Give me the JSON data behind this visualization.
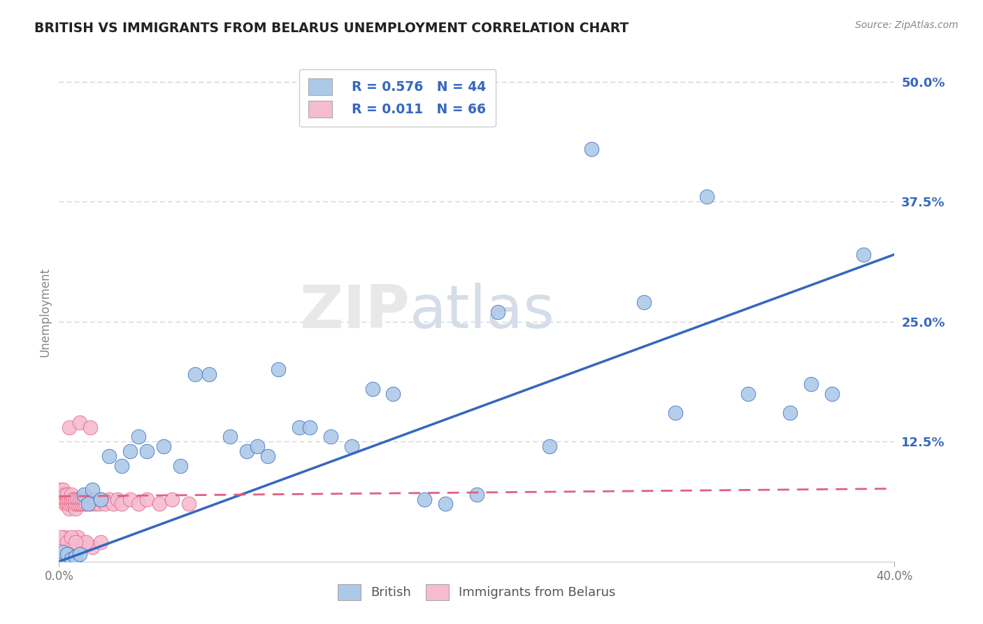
{
  "title": "BRITISH VS IMMIGRANTS FROM BELARUS UNEMPLOYMENT CORRELATION CHART",
  "source": "Source: ZipAtlas.com",
  "ylabel": "Unemployment",
  "legend_british_R": "R = 0.576",
  "legend_british_N": "N = 44",
  "legend_belarus_R": "R = 0.011",
  "legend_belarus_N": "N = 66",
  "ytick_values": [
    0.0,
    0.125,
    0.25,
    0.375,
    0.5
  ],
  "xlim": [
    0.0,
    0.4
  ],
  "ylim": [
    0.0,
    0.52
  ],
  "british_color": "#adc9e8",
  "belarus_color": "#f5bcd0",
  "british_line_color": "#3567c0",
  "belarus_line_color": "#e06080",
  "background_color": "#ffffff",
  "watermark_zip": "ZIP",
  "watermark_atlas": "atlas",
  "brit_x": [
    0.001,
    0.002,
    0.004,
    0.006,
    0.008,
    0.01,
    0.012,
    0.014,
    0.016,
    0.02,
    0.024,
    0.03,
    0.034,
    0.038,
    0.042,
    0.05,
    0.058,
    0.065,
    0.072,
    0.082,
    0.09,
    0.095,
    0.1,
    0.105,
    0.115,
    0.12,
    0.13,
    0.14,
    0.15,
    0.16,
    0.175,
    0.185,
    0.2,
    0.21,
    0.235,
    0.255,
    0.28,
    0.295,
    0.31,
    0.33,
    0.35,
    0.36,
    0.37,
    0.385
  ],
  "brit_y": [
    0.005,
    0.01,
    0.008,
    0.003,
    0.005,
    0.008,
    0.07,
    0.06,
    0.075,
    0.065,
    0.11,
    0.1,
    0.115,
    0.13,
    0.115,
    0.12,
    0.1,
    0.195,
    0.195,
    0.13,
    0.115,
    0.12,
    0.11,
    0.2,
    0.14,
    0.14,
    0.13,
    0.12,
    0.18,
    0.175,
    0.065,
    0.06,
    0.07,
    0.26,
    0.12,
    0.43,
    0.27,
    0.155,
    0.38,
    0.175,
    0.155,
    0.185,
    0.175,
    0.32
  ],
  "bel_x": [
    0.001,
    0.001,
    0.001,
    0.002,
    0.002,
    0.002,
    0.003,
    0.003,
    0.003,
    0.004,
    0.004,
    0.004,
    0.005,
    0.005,
    0.005,
    0.006,
    0.006,
    0.006,
    0.007,
    0.007,
    0.008,
    0.008,
    0.008,
    0.009,
    0.009,
    0.01,
    0.01,
    0.011,
    0.011,
    0.012,
    0.012,
    0.013,
    0.014,
    0.015,
    0.016,
    0.017,
    0.018,
    0.019,
    0.02,
    0.022,
    0.024,
    0.026,
    0.028,
    0.03,
    0.034,
    0.038,
    0.042,
    0.048,
    0.054,
    0.062,
    0.005,
    0.01,
    0.015,
    0.007,
    0.008,
    0.012,
    0.016,
    0.02,
    0.003,
    0.006,
    0.009,
    0.013,
    0.001,
    0.004,
    0.006,
    0.008
  ],
  "bel_y": [
    0.065,
    0.07,
    0.075,
    0.065,
    0.07,
    0.075,
    0.06,
    0.065,
    0.07,
    0.06,
    0.065,
    0.07,
    0.055,
    0.06,
    0.065,
    0.06,
    0.065,
    0.07,
    0.06,
    0.065,
    0.055,
    0.06,
    0.065,
    0.06,
    0.065,
    0.06,
    0.065,
    0.06,
    0.065,
    0.06,
    0.065,
    0.06,
    0.065,
    0.06,
    0.065,
    0.06,
    0.065,
    0.06,
    0.065,
    0.06,
    0.065,
    0.06,
    0.065,
    0.06,
    0.065,
    0.06,
    0.065,
    0.06,
    0.065,
    0.06,
    0.14,
    0.145,
    0.14,
    0.02,
    0.015,
    0.02,
    0.015,
    0.02,
    0.025,
    0.02,
    0.025,
    0.02,
    0.025,
    0.02,
    0.025,
    0.02
  ]
}
